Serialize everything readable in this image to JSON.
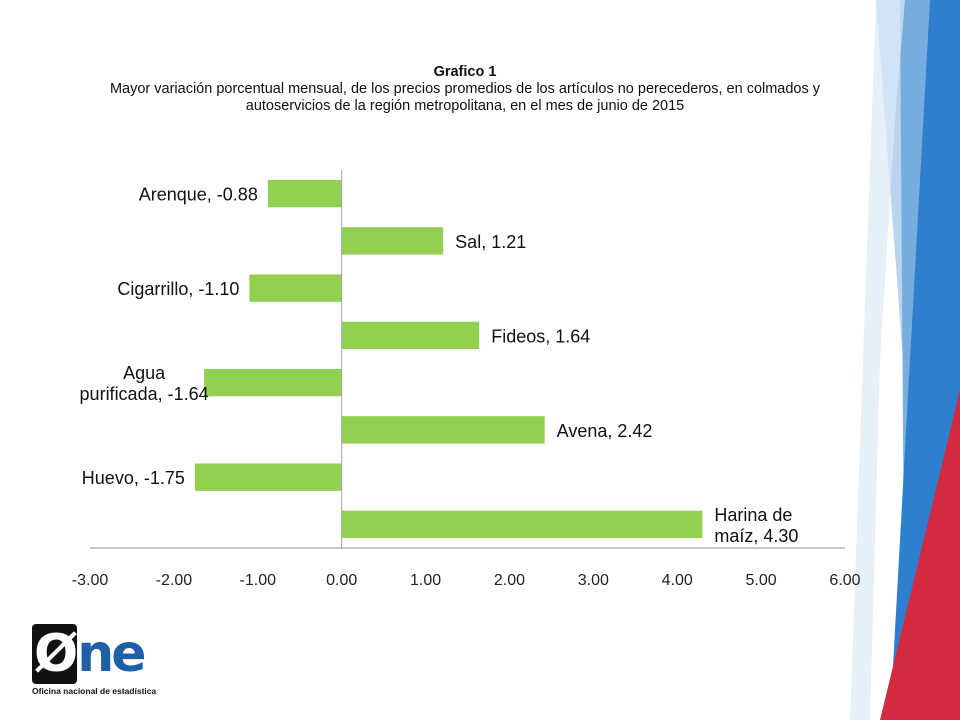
{
  "chart_data": {
    "type": "bar",
    "orientation": "horizontal",
    "title": "Grafico 1",
    "subtitle": "Mayor variación porcentual mensual, de los precios promedios de los artículos no perecederos, en colmados y autoservicios  de la región metropolitana, en el mes de junio de 2015",
    "categories": [
      "Arenque",
      "Sal",
      "Cigarrillo",
      "Fideos",
      "Agua purificada",
      "Avena",
      "Huevo",
      "Harina de maíz"
    ],
    "values": [
      -0.88,
      1.21,
      -1.1,
      1.64,
      -1.64,
      2.42,
      -1.75,
      4.3
    ],
    "data_labels": [
      [
        "Arenque, -0.88"
      ],
      [
        "Sal, 1.21"
      ],
      [
        "Cigarrillo, -1.10"
      ],
      [
        "Fideos, 1.64"
      ],
      [
        "Agua",
        "purificada, -1.64"
      ],
      [
        "Avena, 2.42"
      ],
      [
        "Huevo, -1.75"
      ],
      [
        "Harina de",
        "maíz, 4.30"
      ]
    ],
    "xlim": [
      -3,
      6
    ],
    "x_ticks": [
      "-3.00",
      "-2.00",
      "-1.00",
      "0.00",
      "1.00",
      "2.00",
      "3.00",
      "4.00",
      "5.00",
      "6.00"
    ],
    "xlabel": "",
    "ylabel": "",
    "grid": false,
    "legend": "none",
    "bar_color": "#92d050"
  },
  "logo": {
    "mark_o": "Ø",
    "mark_ne": "ne",
    "tagline": "Oficina nacional de estadística"
  },
  "colors": {
    "bar": "#92d050",
    "axis": "#a6a6a6",
    "decor_blue_dark": "#2f7fcf",
    "decor_blue_light": "#9cc3e6",
    "decor_red": "#d42a40"
  }
}
